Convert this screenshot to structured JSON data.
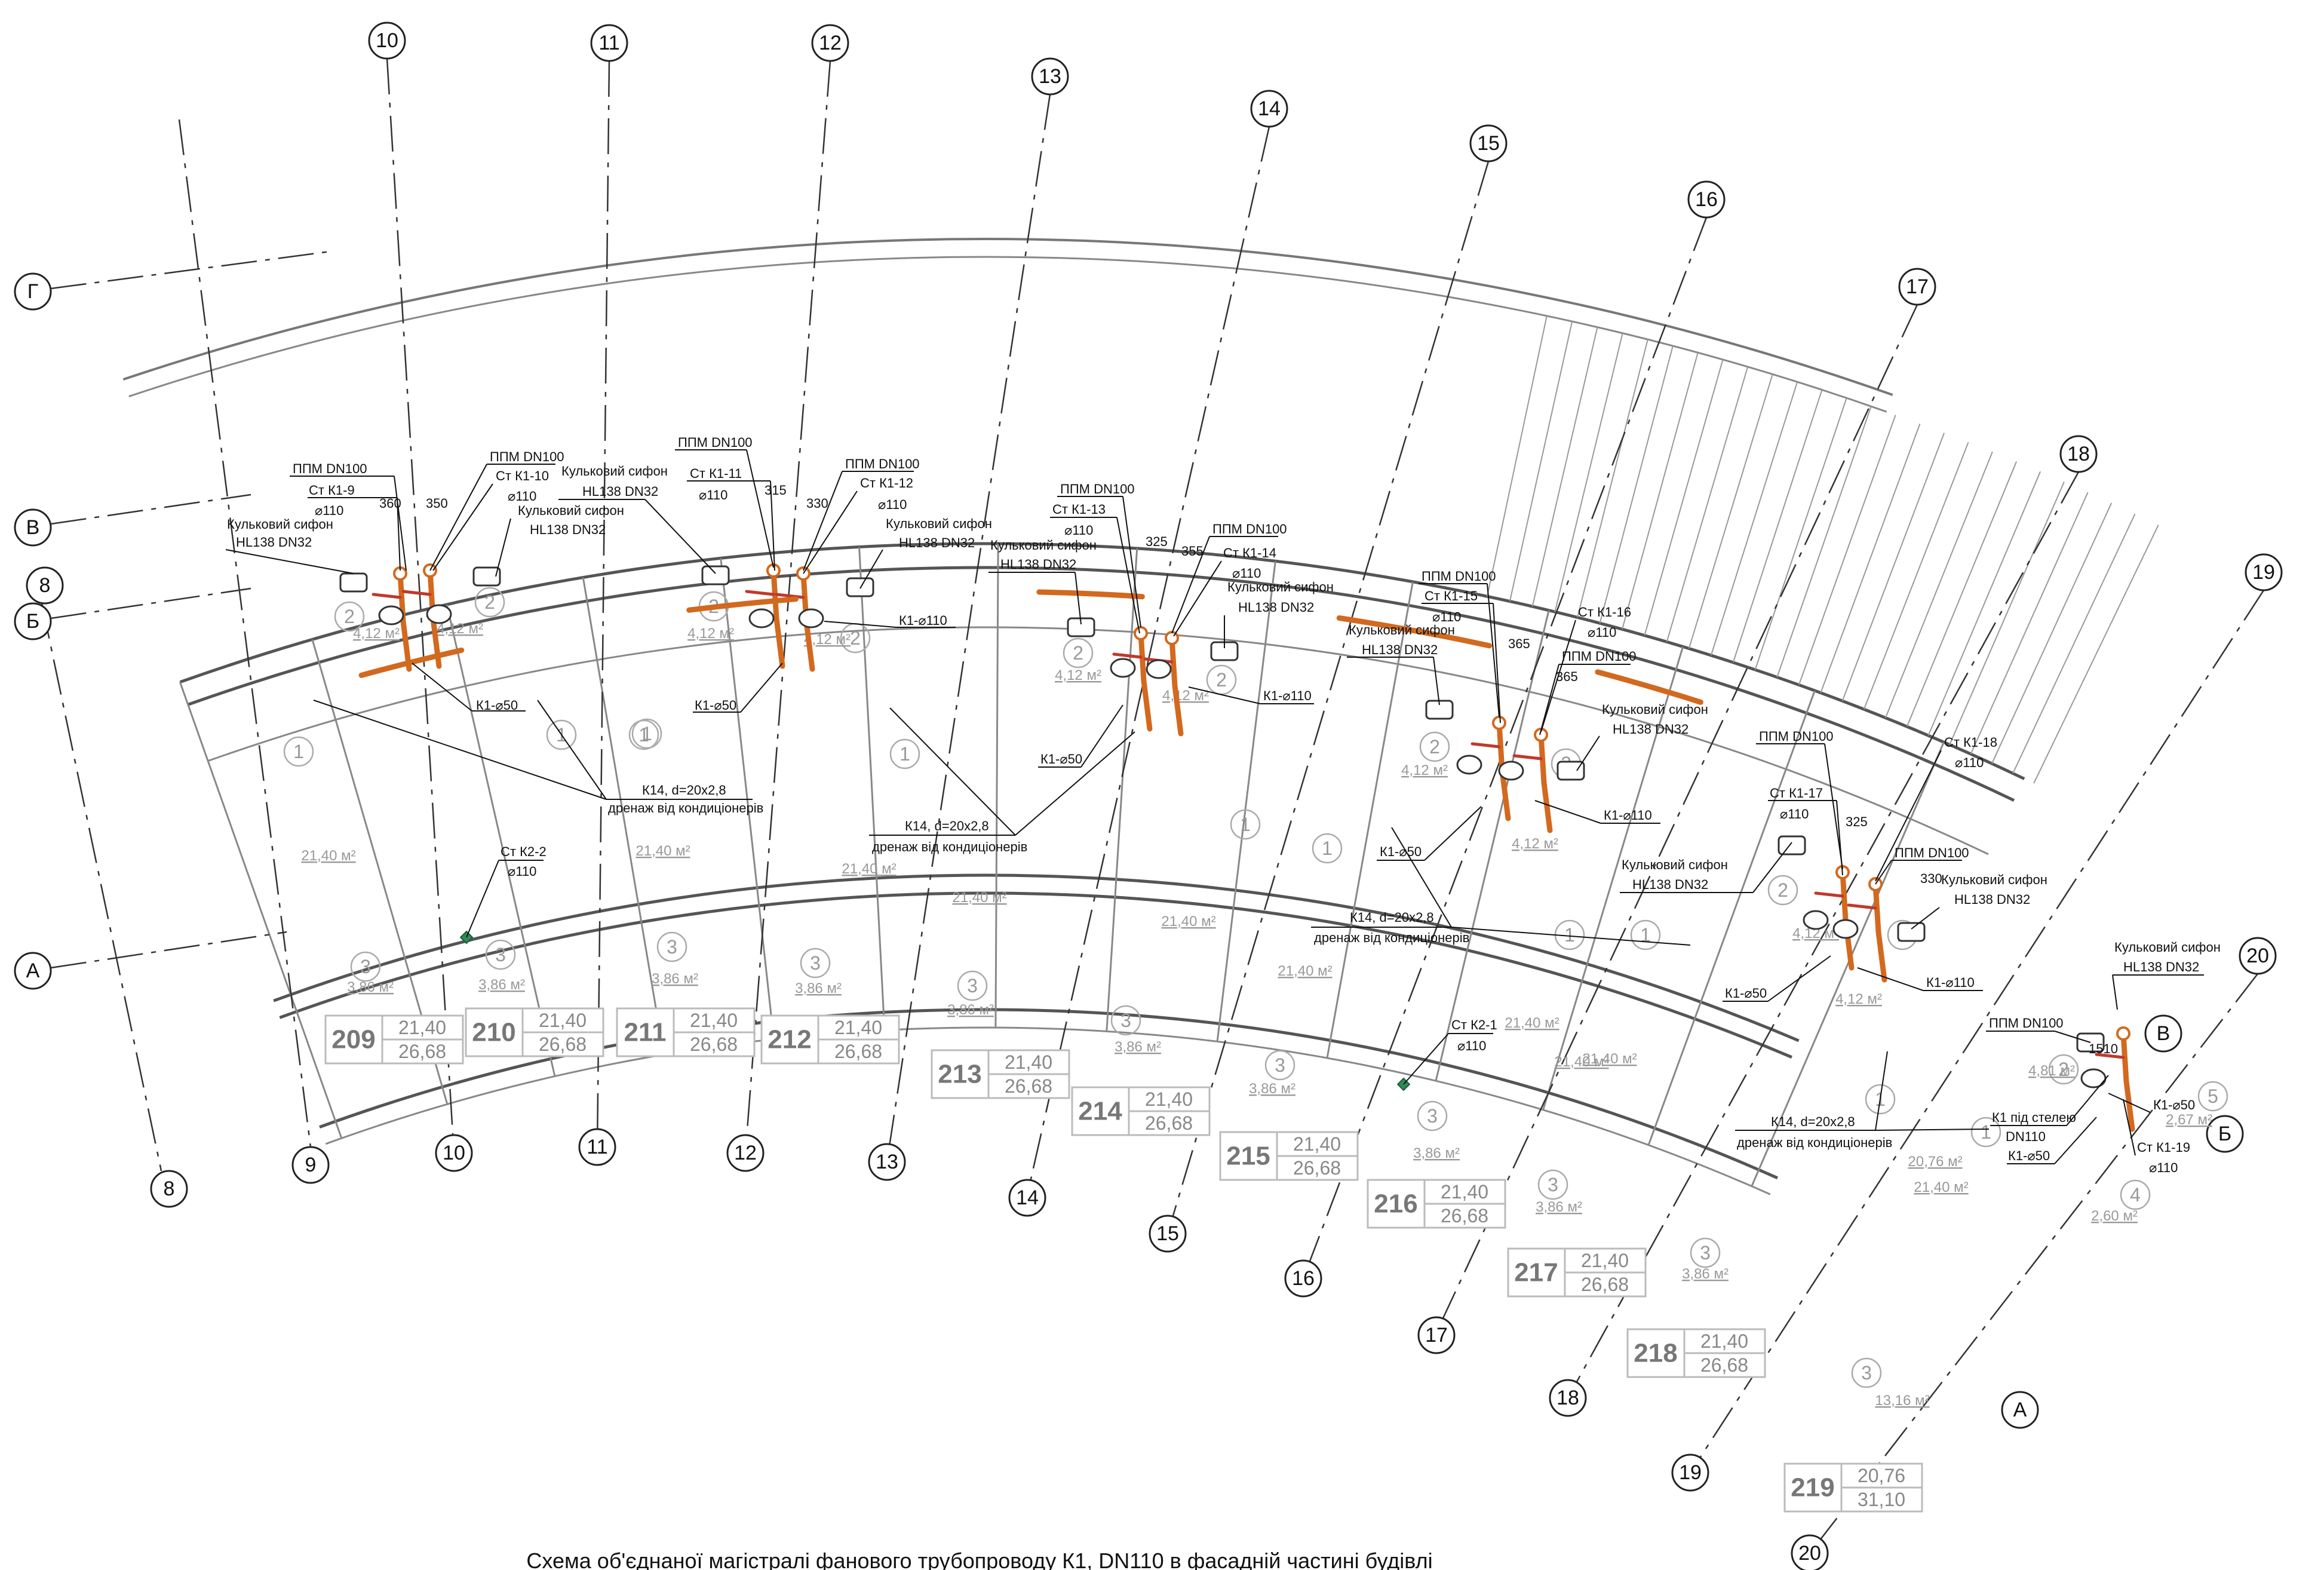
{
  "axes": {
    "numeric": [
      {
        "label": "10"
      },
      {
        "label": "11"
      },
      {
        "label": "12"
      },
      {
        "label": "13"
      },
      {
        "label": "14"
      },
      {
        "label": "15"
      },
      {
        "label": "16"
      },
      {
        "label": "17"
      },
      {
        "label": "18"
      },
      {
        "label": "19"
      },
      {
        "label": "20"
      }
    ],
    "numeric_bottom": [
      {
        "label": "8"
      },
      {
        "label": "9"
      },
      {
        "label": "10"
      },
      {
        "label": "11"
      },
      {
        "label": "12"
      },
      {
        "label": "13"
      },
      {
        "label": "14"
      },
      {
        "label": "15"
      },
      {
        "label": "16"
      },
      {
        "label": "17"
      },
      {
        "label": "18"
      },
      {
        "label": "19"
      },
      {
        "label": "20"
      }
    ],
    "letters": [
      {
        "label": "Г"
      },
      {
        "label": "В"
      },
      {
        "label": "8"
      },
      {
        "label": "Б"
      },
      {
        "label": "А"
      },
      {
        "label": "В"
      },
      {
        "label": "Б"
      },
      {
        "label": "А"
      }
    ]
  },
  "rooms": [
    {
      "num": "209",
      "a": "21,40",
      "b": "26,68"
    },
    {
      "num": "210",
      "a": "21,40",
      "b": "26,68"
    },
    {
      "num": "211",
      "a": "21,40",
      "b": "26,68"
    },
    {
      "num": "212",
      "a": "21,40",
      "b": "26,68"
    },
    {
      "num": "213",
      "a": "21,40",
      "b": "26,68"
    },
    {
      "num": "214",
      "a": "21,40",
      "b": "26,68"
    },
    {
      "num": "215",
      "a": "21,40",
      "b": "26,68"
    },
    {
      "num": "216",
      "a": "21,40",
      "b": "26,68"
    },
    {
      "num": "217",
      "a": "21,40",
      "b": "26,68"
    },
    {
      "num": "218",
      "a": "21,40",
      "b": "26,68"
    },
    {
      "num": "219",
      "a": "20,76",
      "b": "31,10"
    }
  ],
  "zones": [
    {
      "n": "1",
      "area": "21,40 м²"
    },
    {
      "n": "1",
      "area": "21,40 м²"
    },
    {
      "n": "1",
      "area": "21,40 м²"
    },
    {
      "n": "1",
      "area": "21,40 м²"
    },
    {
      "n": "1",
      "area": "21,40 м²"
    },
    {
      "n": "1",
      "area": "21,40 м²"
    },
    {
      "n": "1",
      "area": "21,40 м²"
    },
    {
      "n": "1",
      "area": "21,40 м²"
    },
    {
      "n": "1",
      "area": "21,40 м²"
    },
    {
      "n": "1",
      "area": "21,40 м²"
    },
    {
      "n": "1",
      "area": "20,76 м²"
    },
    {
      "n": "2",
      "area": "4,12 м²"
    },
    {
      "n": "2",
      "area": "4,12 м²"
    },
    {
      "n": "2",
      "area": "4,12 м²"
    },
    {
      "n": "2",
      "area": "4,12 м²"
    },
    {
      "n": "2",
      "area": "4,12 м²"
    },
    {
      "n": "2",
      "area": "4,12 м²"
    },
    {
      "n": "2",
      "area": "4,12 м²"
    },
    {
      "n": "2",
      "area": "4,12 м²"
    },
    {
      "n": "2",
      "area": "4,12 м²"
    },
    {
      "n": "2",
      "area": "4,12 м²"
    },
    {
      "n": "2",
      "area": "4,81 м²"
    },
    {
      "n": "3",
      "area": "3,86 м²"
    },
    {
      "n": "3",
      "area": "3,86 м²"
    },
    {
      "n": "3",
      "area": "3,86 м²"
    },
    {
      "n": "3",
      "area": "3,86 м²"
    },
    {
      "n": "3",
      "area": "3,86 м²"
    },
    {
      "n": "3",
      "area": "3,86 м²"
    },
    {
      "n": "3",
      "area": "3,86 м²"
    },
    {
      "n": "3",
      "area": "3,86 м²"
    },
    {
      "n": "3",
      "area": "3,86 м²"
    },
    {
      "n": "3",
      "area": "3,86 м²"
    },
    {
      "n": "3",
      "area": "13,16 м²"
    },
    {
      "n": "4",
      "area": "2,60 м²"
    },
    {
      "n": "5",
      "area": "2,67 м²"
    }
  ],
  "labels": {
    "ppm": "ППМ DN100",
    "st_k1_9": "Ст К1-9",
    "st_k1_10": "Ст К1-10",
    "st_k1_11": "Ст К1-11",
    "st_k1_12": "Ст К1-12",
    "st_k1_13": "Ст К1-13",
    "st_k1_14": "Ст К1-14",
    "st_k1_15": "Ст К1-15",
    "st_k1_16": "Ст К1-16",
    "st_k1_17": "Ст К1-17",
    "st_k1_18": "Ст К1-18",
    "st_k1_19": "Ст К1-19",
    "st_k2_1": "Ст К2-1",
    "st_k2_2": "Ст К2-2",
    "d110": "⌀110",
    "siphon": "Кульковий сифон",
    "siphon_model": "HL138 DN32",
    "k1_110": "К1-⌀110",
    "k1_50": "К1-⌀50",
    "k14": "К14, d=20х2,8",
    "drain": "дренаж від кондиціонерів",
    "k1_ceiling": "К1 під стелею",
    "dn110": "DN110",
    "dim_360": "360",
    "dim_350": "350",
    "dim_315": "315",
    "dim_330": "330",
    "dim_325": "325",
    "dim_355": "355",
    "dim_365": "365",
    "dim_1510": "1510"
  },
  "title": "Схема об'єднаної магістралі фанового трубопроводу К1, DN110 в фасадній частині будівлі"
}
